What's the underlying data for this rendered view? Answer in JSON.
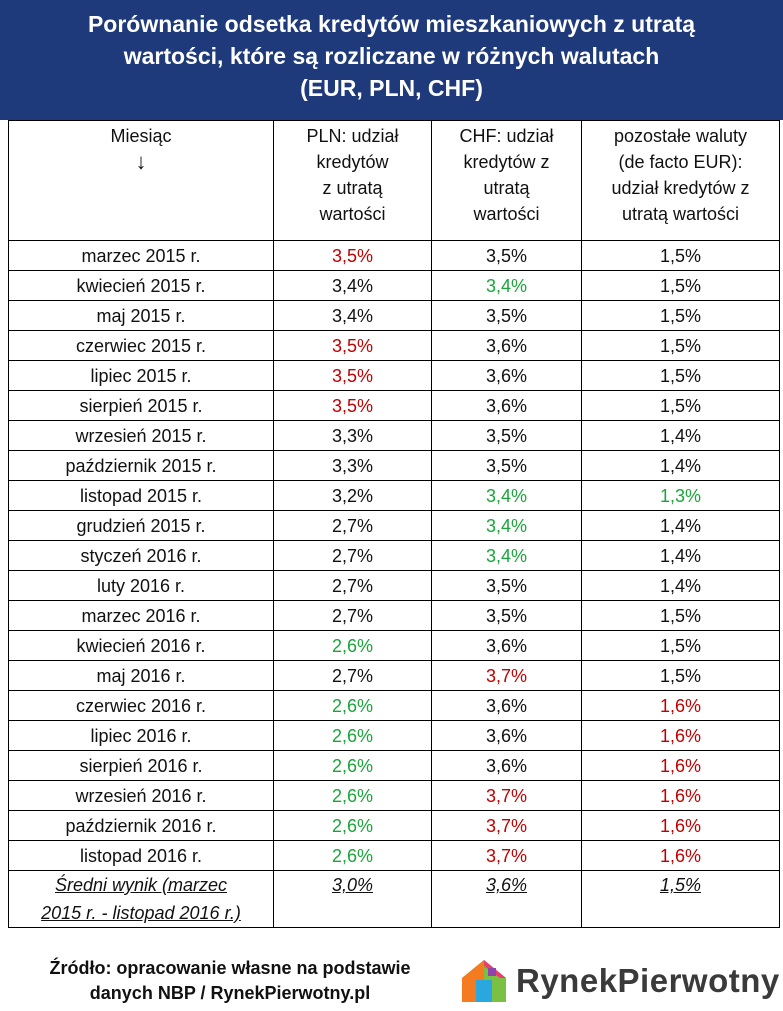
{
  "title": {
    "line1": "Porównanie odsetka kredytów mieszkaniowych z utratą",
    "line2": "wartości, które są rozliczane w różnych walutach",
    "line3": "(EUR, PLN, CHF)"
  },
  "columns": [
    {
      "line1": "Miesiąc",
      "line2": "↓"
    },
    {
      "line1": "PLN: udział",
      "line2": "kredytów",
      "line3": "z utratą",
      "line4": "wartości"
    },
    {
      "line1": "CHF: udział",
      "line2": "kredytów z",
      "line3": "utratą",
      "line4": "wartości"
    },
    {
      "line1": "pozostałe waluty",
      "line2": "(de facto EUR):",
      "line3": "udział kredytów z",
      "line4": "utratą wartości"
    }
  ],
  "rows": [
    {
      "month": "marzec 2015 r.",
      "pln": "3,5%",
      "chf": "3,5%",
      "other": "1,5%"
    },
    {
      "month": "kwiecień 2015 r.",
      "pln": "3,4%",
      "chf": "3,4%",
      "other": "1,5%"
    },
    {
      "month": "maj 2015 r.",
      "pln": "3,4%",
      "chf": "3,5%",
      "other": "1,5%"
    },
    {
      "month": "czerwiec 2015 r.",
      "pln": "3,5%",
      "chf": "3,6%",
      "other": "1,5%"
    },
    {
      "month": "lipiec 2015 r.",
      "pln": "3,5%",
      "chf": "3,6%",
      "other": "1,5%"
    },
    {
      "month": "sierpień 2015 r.",
      "pln": "3,5%",
      "chf": "3,6%",
      "other": "1,5%"
    },
    {
      "month": "wrzesień 2015 r.",
      "pln": "3,3%",
      "chf": "3,5%",
      "other": "1,4%"
    },
    {
      "month": "październik 2015 r.",
      "pln": "3,3%",
      "chf": "3,5%",
      "other": "1,4%"
    },
    {
      "month": "listopad 2015 r.",
      "pln": "3,2%",
      "chf": "3,4%",
      "other": "1,3%"
    },
    {
      "month": "grudzień 2015 r.",
      "pln": "2,7%",
      "chf": "3,4%",
      "other": "1,4%"
    },
    {
      "month": "styczeń 2016 r.",
      "pln": "2,7%",
      "chf": "3,4%",
      "other": "1,4%"
    },
    {
      "month": "luty 2016 r.",
      "pln": "2,7%",
      "chf": "3,5%",
      "other": "1,4%"
    },
    {
      "month": "marzec 2016 r.",
      "pln": "2,7%",
      "chf": "3,5%",
      "other": "1,5%"
    },
    {
      "month": "kwiecień 2016 r.",
      "pln": "2,6%",
      "chf": "3,6%",
      "other": "1,5%"
    },
    {
      "month": "maj 2016 r.",
      "pln": "2,7%",
      "chf": "3,7%",
      "other": "1,5%"
    },
    {
      "month": "czerwiec 2016 r.",
      "pln": "2,6%",
      "chf": "3,6%",
      "other": "1,6%"
    },
    {
      "month": "lipiec 2016 r.",
      "pln": "2,6%",
      "chf": "3,6%",
      "other": "1,6%"
    },
    {
      "month": "sierpień 2016 r.",
      "pln": "2,6%",
      "chf": "3,6%",
      "other": "1,6%"
    },
    {
      "month": "wrzesień 2016 r.",
      "pln": "2,6%",
      "chf": "3,7%",
      "other": "1,6%"
    },
    {
      "month": "październik 2016 r.",
      "pln": "2,6%",
      "chf": "3,7%",
      "other": "1,6%"
    },
    {
      "month": "listopad 2016 r.",
      "pln": "2,6%",
      "chf": "3,7%",
      "other": "1,6%"
    }
  ],
  "highlights": {
    "pln": [
      "red",
      "",
      "",
      "red",
      "red",
      "red",
      "",
      "",
      "",
      "",
      "",
      "",
      "",
      "green",
      "",
      "green",
      "green",
      "green",
      "green",
      "green",
      "green"
    ],
    "chf": [
      "",
      "green",
      "",
      "",
      "",
      "",
      "",
      "",
      "green",
      "green",
      "green",
      "",
      "",
      "",
      "red",
      "",
      "",
      "",
      "red",
      "red",
      "red"
    ],
    "other": [
      "",
      "",
      "",
      "",
      "",
      "",
      "",
      "",
      "green",
      "",
      "",
      "",
      "",
      "",
      "",
      "red",
      "red",
      "red",
      "red",
      "red",
      "red"
    ]
  },
  "average": {
    "label_line1": "Średni wynik (marzec",
    "label_line2": "2015 r. - listopad 2016 r.)",
    "pln": "3,0%",
    "chf": "3,6%",
    "other": "1,5%"
  },
  "footer": {
    "source_line1": "Źródło: opracowanie własne na podstawie",
    "source_line2": "danych NBP / RynekPierwotny.pl",
    "logo_text": "RynekPierwotny"
  },
  "colors": {
    "header_bg": "#1f3a7a",
    "high": "#c00000",
    "low": "#1aa53a"
  },
  "icons": {
    "logo": "house-logo-icon"
  }
}
